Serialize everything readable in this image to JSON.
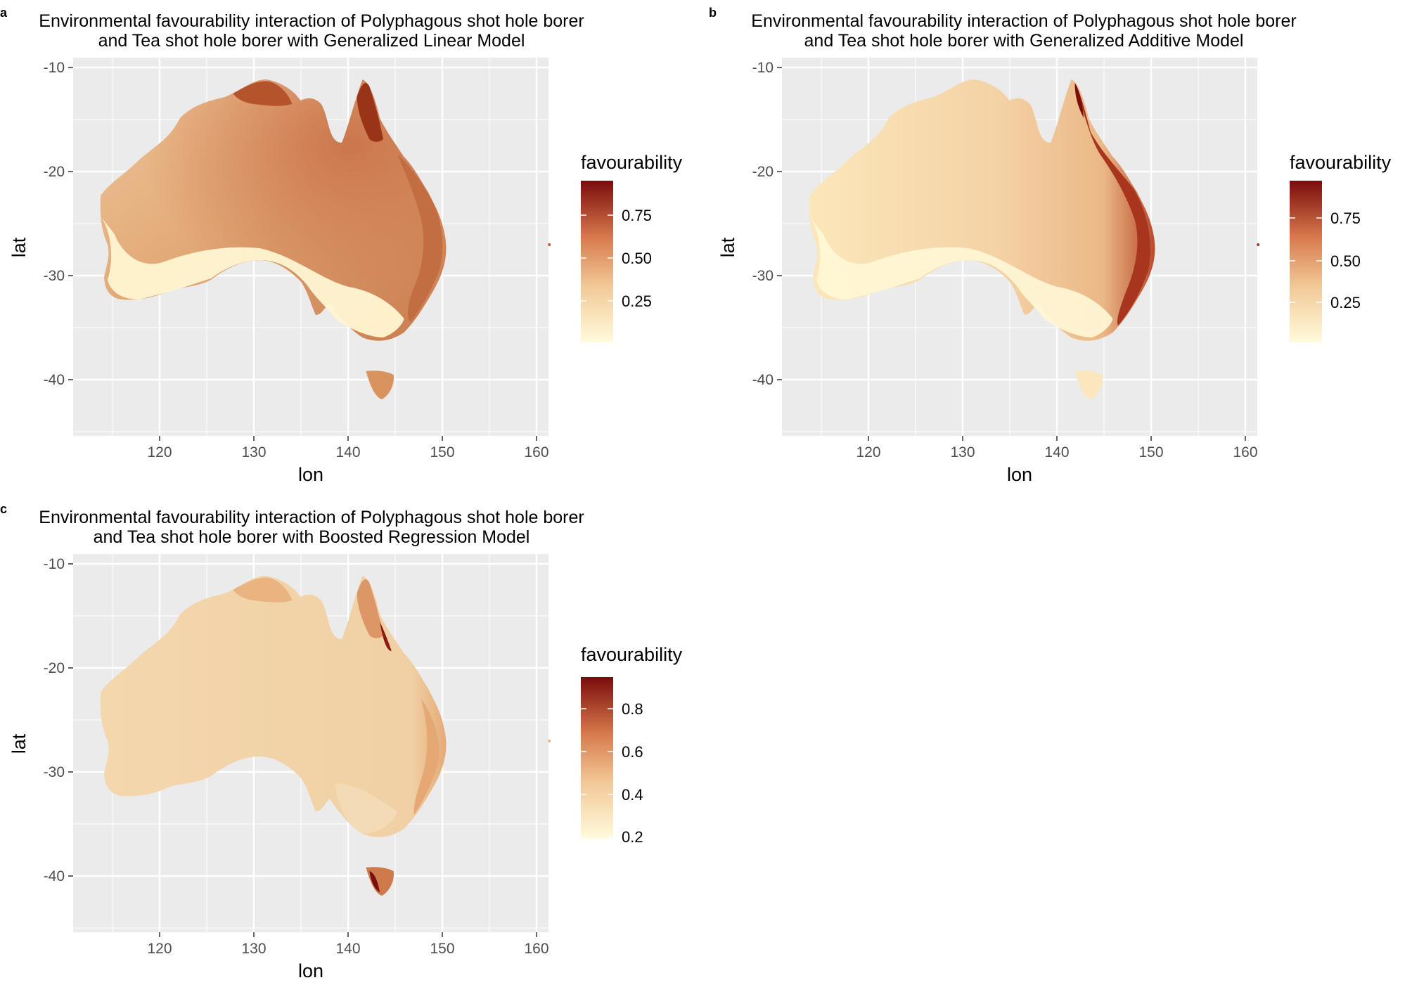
{
  "figure": {
    "panels": [
      {
        "tag": "a",
        "title_line1": "Environmental favourability interaction of Polyphagous shot hole borer",
        "title_line2": "and Tea shot hole borer with Generalized Linear Model",
        "xlabel": "lon",
        "ylabel": "lat",
        "x_ticks": [
          "120",
          "130",
          "140",
          "150",
          "160"
        ],
        "y_ticks": [
          "-10",
          "-20",
          "-30",
          "-40"
        ],
        "legend_title": "favourability",
        "legend_ticks": [
          "0.75",
          "0.50",
          "0.25"
        ],
        "colors": {
          "low": "#fff9d6",
          "mid": "#e8a36f",
          "high": "#7a0d0d",
          "background": "#ebebeb"
        },
        "scheme": "glm"
      },
      {
        "tag": "b",
        "title_line1": "Environmental favourability interaction of Polyphagous shot hole borer",
        "title_line2": "and Tea shot hole borer with Generalized Additive Model",
        "xlabel": "lon",
        "ylabel": "lat",
        "x_ticks": [
          "120",
          "130",
          "140",
          "150",
          "160"
        ],
        "y_ticks": [
          "-10",
          "-20",
          "-30",
          "-40"
        ],
        "legend_title": "favourability",
        "legend_ticks": [
          "0.75",
          "0.50",
          "0.25"
        ],
        "colors": {
          "low": "#fff9d6",
          "mid": "#e8a36f",
          "high": "#7a0d0d",
          "background": "#ebebeb"
        },
        "scheme": "gam"
      },
      {
        "tag": "c",
        "title_line1": "Environmental favourability interaction of Polyphagous shot hole borer",
        "title_line2": "and Tea shot hole borer with Boosted Regression Model",
        "xlabel": "lon",
        "ylabel": "lat",
        "x_ticks": [
          "120",
          "130",
          "140",
          "150",
          "160"
        ],
        "y_ticks": [
          "-10",
          "-20",
          "-30",
          "-40"
        ],
        "legend_title": "favourability",
        "legend_ticks": [
          "0.8",
          "0.6",
          "0.4",
          "0.2"
        ],
        "colors": {
          "low": "#fff9d6",
          "mid": "#e8a36f",
          "high": "#7a0d0d",
          "background": "#ebebeb"
        },
        "scheme": "brt"
      }
    ]
  }
}
